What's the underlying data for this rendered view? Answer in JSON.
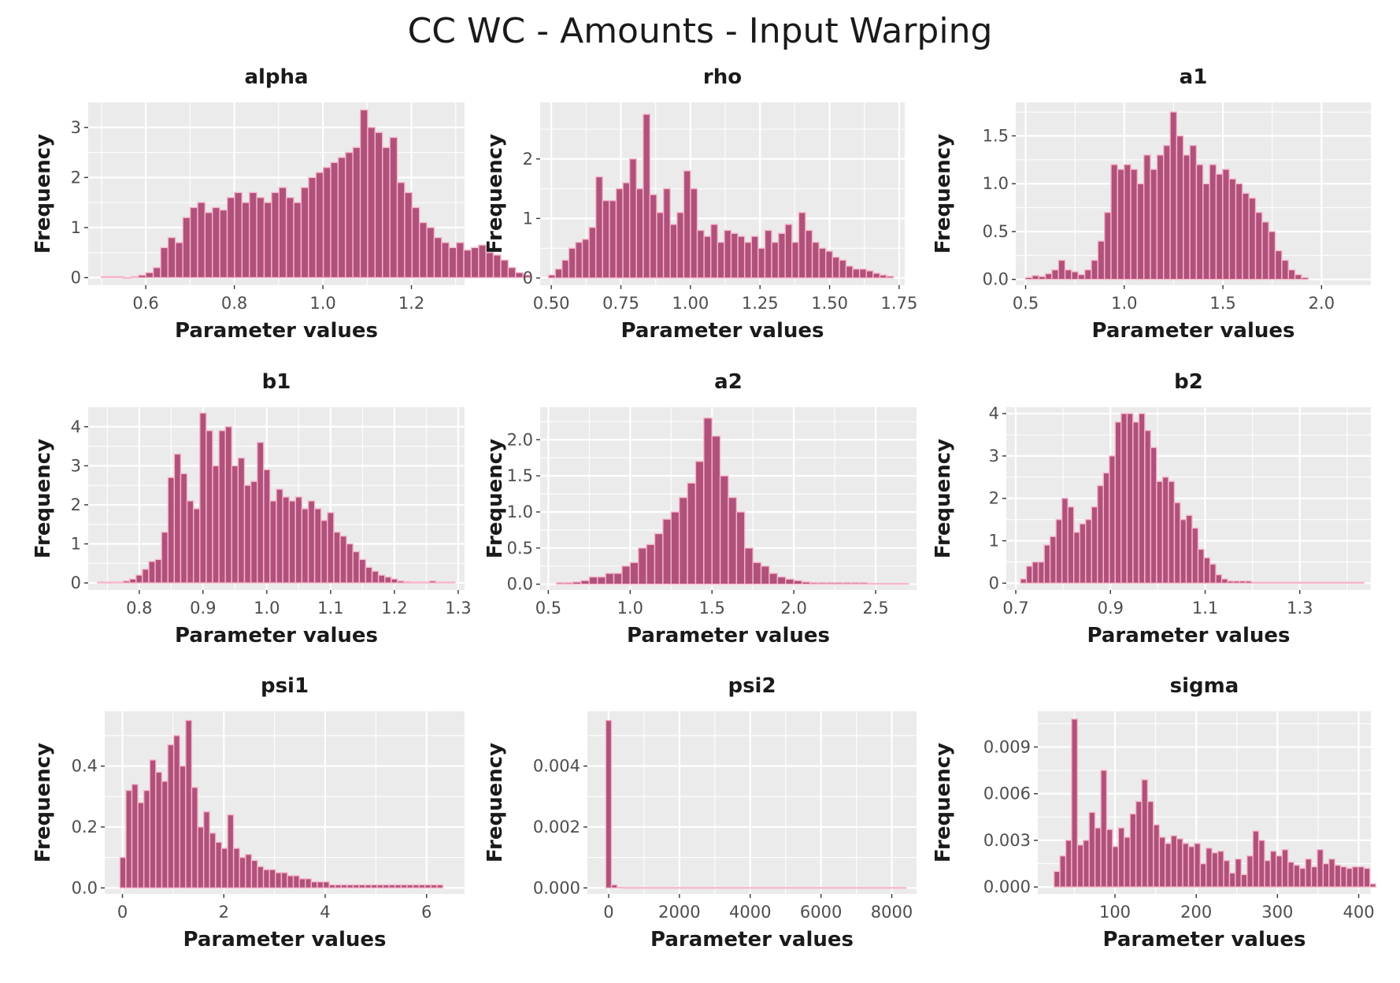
{
  "title": "CC WC - Amounts - Input Warping",
  "colors": {
    "panel_bg": "#ebebeb",
    "grid_major": "#ffffff",
    "bar_fill": "#b0517c",
    "bar_outline": "#f7b6c8",
    "text": "#1a1a1a",
    "tick_text": "#4d4d4d"
  },
  "chart_data": [
    {
      "type": "bar",
      "title": "alpha",
      "xlabel": "Parameter values",
      "ylabel": "Frequency",
      "xlim": [
        0.47,
        1.32
      ],
      "ylim": [
        -0.15,
        3.5
      ],
      "xticks": [
        0.6,
        0.8,
        1.0,
        1.2
      ],
      "xtick_labels": [
        "0.6",
        "0.8",
        "1.0",
        "1.2"
      ],
      "yticks": [
        0,
        1,
        2,
        3
      ],
      "ytick_labels": [
        "0",
        "1",
        "2",
        "3"
      ],
      "bin_start": 0.5,
      "bin_width": 0.0167,
      "values": [
        0.02,
        0.02,
        0.02,
        0.0,
        0.02,
        0.05,
        0.1,
        0.2,
        0.6,
        0.8,
        0.7,
        1.2,
        1.4,
        1.5,
        1.3,
        1.4,
        1.35,
        1.6,
        1.7,
        1.5,
        1.7,
        1.6,
        1.5,
        1.7,
        1.8,
        1.6,
        1.5,
        1.8,
        2.0,
        2.1,
        2.2,
        2.3,
        2.4,
        2.5,
        2.6,
        3.35,
        3.0,
        2.9,
        2.6,
        2.8,
        1.9,
        1.7,
        1.4,
        1.1,
        1.0,
        0.8,
        0.7,
        0.6,
        0.7,
        0.55,
        0.6,
        0.65,
        0.5,
        0.45,
        0.35,
        0.2,
        0.1,
        0.05
      ]
    },
    {
      "type": "bar",
      "title": "rho",
      "xlabel": "Parameter values",
      "ylabel": "Frequency",
      "xlim": [
        0.46,
        1.77
      ],
      "ylim": [
        -0.12,
        2.95
      ],
      "xticks": [
        0.5,
        0.75,
        1.0,
        1.25,
        1.5,
        1.75
      ],
      "xtick_labels": [
        "0.50",
        "0.75",
        "1.00",
        "1.25",
        "1.50",
        "1.75"
      ],
      "yticks": [
        0,
        1,
        2
      ],
      "ytick_labels": [
        "0",
        "1",
        "2"
      ],
      "bin_start": 0.49,
      "bin_width": 0.0243,
      "values": [
        0.05,
        0.15,
        0.3,
        0.5,
        0.6,
        0.65,
        0.85,
        1.7,
        1.3,
        1.3,
        1.5,
        1.6,
        2.0,
        1.5,
        2.75,
        1.4,
        1.1,
        1.5,
        0.9,
        1.1,
        1.8,
        1.5,
        0.8,
        0.7,
        0.9,
        0.6,
        0.8,
        0.75,
        0.7,
        0.6,
        0.7,
        0.5,
        0.8,
        0.6,
        0.75,
        0.9,
        0.6,
        1.1,
        0.8,
        0.6,
        0.5,
        0.45,
        0.35,
        0.3,
        0.2,
        0.15,
        0.15,
        0.12,
        0.08,
        0.05,
        0.03
      ]
    },
    {
      "type": "bar",
      "title": "a1",
      "xlabel": "Parameter values",
      "ylabel": "Frequency",
      "xlim": [
        0.45,
        2.25
      ],
      "ylim": [
        -0.06,
        1.85
      ],
      "xticks": [
        0.5,
        1.0,
        1.5,
        2.0
      ],
      "xtick_labels": [
        "0.5",
        "1.0",
        "1.5",
        "2.0"
      ],
      "yticks": [
        0.0,
        0.5,
        1.0,
        1.5
      ],
      "ytick_labels": [
        "0.0",
        "0.5",
        "1.0",
        "1.5"
      ],
      "bin_start": 0.5,
      "bin_width": 0.0333,
      "values": [
        0.02,
        0.04,
        0.03,
        0.06,
        0.1,
        0.2,
        0.1,
        0.08,
        0.05,
        0.1,
        0.2,
        0.4,
        0.7,
        1.2,
        1.15,
        1.2,
        1.15,
        1.0,
        1.3,
        1.15,
        1.3,
        1.4,
        1.75,
        1.5,
        1.3,
        1.4,
        1.2,
        1.0,
        1.2,
        1.1,
        1.15,
        1.05,
        1.0,
        0.9,
        0.85,
        0.7,
        0.6,
        0.5,
        0.3,
        0.2,
        0.1,
        0.05,
        0.02
      ]
    },
    {
      "type": "bar",
      "title": "b1",
      "xlabel": "Parameter values",
      "ylabel": "Frequency",
      "xlim": [
        0.72,
        1.31
      ],
      "ylim": [
        -0.18,
        4.5
      ],
      "xticks": [
        0.8,
        0.9,
        1.0,
        1.1,
        1.2,
        1.3
      ],
      "xtick_labels": [
        "0.8",
        "0.9",
        "1.0",
        "1.1",
        "1.2",
        "1.3"
      ],
      "yticks": [
        0,
        1,
        2,
        3,
        4
      ],
      "ytick_labels": [
        "0",
        "1",
        "2",
        "3",
        "4"
      ],
      "bin_start": 0.735,
      "bin_width": 0.01,
      "values": [
        0.02,
        0.02,
        0.02,
        0.02,
        0.05,
        0.1,
        0.2,
        0.35,
        0.55,
        0.6,
        1.3,
        2.7,
        3.3,
        2.8,
        2.1,
        1.9,
        4.35,
        3.9,
        3.0,
        3.9,
        4.0,
        3.0,
        3.2,
        2.5,
        2.6,
        3.6,
        2.9,
        2.1,
        2.4,
        2.2,
        2.1,
        2.2,
        1.9,
        2.1,
        1.9,
        1.6,
        1.8,
        1.3,
        1.2,
        1.0,
        0.8,
        0.6,
        0.4,
        0.3,
        0.2,
        0.15,
        0.1,
        0.05,
        0.03,
        0.02,
        0.02,
        0.02,
        0.05,
        0.02,
        0.02,
        0.02
      ]
    },
    {
      "type": "bar",
      "title": "a2",
      "xlabel": "Parameter values",
      "ylabel": "Frequency",
      "xlim": [
        0.45,
        2.75
      ],
      "ylim": [
        -0.08,
        2.45
      ],
      "xticks": [
        0.5,
        1.0,
        1.5,
        2.0,
        2.5
      ],
      "xtick_labels": [
        "0.5",
        "1.0",
        "1.5",
        "2.0",
        "2.5"
      ],
      "yticks": [
        0.0,
        0.5,
        1.0,
        1.5,
        2.0
      ],
      "ytick_labels": [
        "0.0",
        "0.5",
        "1.0",
        "1.5",
        "2.0"
      ],
      "bin_start": 0.55,
      "bin_width": 0.05,
      "values": [
        0.02,
        0.02,
        0.03,
        0.05,
        0.1,
        0.1,
        0.15,
        0.15,
        0.25,
        0.3,
        0.5,
        0.55,
        0.7,
        0.9,
        1.0,
        1.2,
        1.4,
        1.7,
        2.3,
        2.05,
        1.5,
        1.2,
        1.0,
        0.5,
        0.3,
        0.25,
        0.15,
        0.1,
        0.07,
        0.05,
        0.03,
        0.02,
        0.02,
        0.02,
        0.02,
        0.02,
        0.02,
        0.02,
        0.01,
        0.01,
        0.01,
        0.01,
        0.01
      ]
    },
    {
      "type": "bar",
      "title": "b2",
      "xlabel": "Parameter values",
      "ylabel": "Frequency",
      "xlim": [
        0.68,
        1.45
      ],
      "ylim": [
        -0.16,
        4.15
      ],
      "xticks": [
        0.7,
        0.9,
        1.1,
        1.3
      ],
      "xtick_labels": [
        "0.7",
        "0.9",
        "1.1",
        "1.3"
      ],
      "yticks": [
        0,
        1,
        2,
        3,
        4
      ],
      "ytick_labels": [
        "0",
        "1",
        "2",
        "3",
        "4"
      ],
      "bin_start": 0.71,
      "bin_width": 0.0125,
      "values": [
        0.1,
        0.4,
        0.5,
        0.5,
        0.9,
        1.1,
        1.5,
        2.0,
        1.8,
        1.2,
        1.4,
        1.5,
        1.8,
        2.3,
        2.6,
        3.0,
        3.8,
        4.0,
        4.0,
        3.8,
        4.0,
        3.6,
        3.2,
        2.4,
        2.5,
        2.4,
        1.9,
        1.5,
        1.6,
        1.3,
        0.8,
        0.6,
        0.45,
        0.2,
        0.1,
        0.05,
        0.05,
        0.05,
        0.05,
        0.02,
        0.02,
        0.02,
        0.02,
        0.02,
        0.02,
        0.02,
        0.02,
        0.02,
        0.02,
        0.02,
        0.02,
        0.02,
        0.02,
        0.02,
        0.02,
        0.02,
        0.02,
        0.02
      ]
    },
    {
      "type": "bar",
      "title": "psi1",
      "xlabel": "Parameter values",
      "ylabel": "Frequency",
      "xlim": [
        -0.35,
        6.75
      ],
      "ylim": [
        -0.02,
        0.58
      ],
      "xticks": [
        0,
        2,
        4,
        6
      ],
      "xtick_labels": [
        "0",
        "2",
        "4",
        "6"
      ],
      "yticks": [
        0.0,
        0.2,
        0.4
      ],
      "ytick_labels": [
        "0.0",
        "0.2",
        "0.4"
      ],
      "bin_start": -0.05,
      "bin_width": 0.118,
      "values": [
        0.1,
        0.32,
        0.34,
        0.28,
        0.32,
        0.42,
        0.38,
        0.35,
        0.47,
        0.5,
        0.4,
        0.55,
        0.33,
        0.2,
        0.25,
        0.18,
        0.15,
        0.13,
        0.24,
        0.13,
        0.1,
        0.11,
        0.09,
        0.07,
        0.06,
        0.06,
        0.05,
        0.05,
        0.04,
        0.04,
        0.03,
        0.03,
        0.02,
        0.02,
        0.02,
        0.01,
        0.01,
        0.01,
        0.01,
        0.01,
        0.01,
        0.01,
        0.01,
        0.01,
        0.01,
        0.01,
        0.01,
        0.01,
        0.01,
        0.01,
        0.01,
        0.01,
        0.01,
        0.01
      ]
    },
    {
      "type": "bar",
      "title": "psi2",
      "xlabel": "Parameter values",
      "ylabel": "Frequency",
      "xlim": [
        -600,
        8700
      ],
      "ylim": [
        -0.0002,
        0.0058
      ],
      "xticks": [
        0,
        2000,
        4000,
        6000,
        8000
      ],
      "xtick_labels": [
        "0",
        "2000",
        "4000",
        "6000",
        "8000"
      ],
      "yticks": [
        0.0,
        0.002,
        0.004
      ],
      "ytick_labels": [
        "0.000",
        "0.002",
        "0.004"
      ],
      "bin_start": -80,
      "bin_width": 160,
      "values": [
        0.0055,
        0.0001,
        2e-05,
        1e-05,
        1e-05,
        1e-05,
        1e-05,
        1e-05,
        1e-05,
        1e-05,
        1e-05,
        1e-05,
        1e-05,
        1e-05,
        1e-05,
        1e-05,
        1e-05,
        1e-05,
        1e-05,
        1e-05,
        1e-05,
        1e-05,
        1e-05,
        1e-05,
        1e-05,
        1e-05,
        1e-05,
        1e-05,
        1e-05,
        1e-05,
        1e-05,
        1e-05,
        1e-05,
        1e-05,
        1e-05,
        1e-05,
        1e-05,
        1e-05,
        1e-05,
        1e-05,
        1e-05,
        1e-05,
        1e-05,
        1e-05,
        1e-05,
        1e-05,
        1e-05,
        1e-05,
        1e-05,
        1e-05,
        1e-05,
        1e-05,
        1e-05
      ]
    },
    {
      "type": "bar",
      "title": "sigma",
      "xlabel": "Parameter values",
      "ylabel": "Frequency",
      "xlim": [
        5,
        415
      ],
      "ylim": [
        -0.00045,
        0.0113
      ],
      "xticks": [
        100,
        200,
        300,
        400
      ],
      "xtick_labels": [
        "100",
        "200",
        "300",
        "400"
      ],
      "yticks": [
        0.0,
        0.003,
        0.006,
        0.009
      ],
      "ytick_labels": [
        "0.000",
        "0.003",
        "0.006",
        "0.009"
      ],
      "bin_start": 25,
      "bin_width": 7.2,
      "values": [
        0.001,
        0.002,
        0.003,
        0.0108,
        0.0027,
        0.003,
        0.0048,
        0.0038,
        0.0075,
        0.0037,
        0.0026,
        0.0038,
        0.0032,
        0.0047,
        0.0055,
        0.0069,
        0.0055,
        0.004,
        0.0032,
        0.0028,
        0.0033,
        0.0031,
        0.0028,
        0.0026,
        0.0028,
        0.0015,
        0.0025,
        0.0022,
        0.0023,
        0.0017,
        0.0009,
        0.0018,
        0.0008,
        0.002,
        0.0036,
        0.003,
        0.0017,
        0.0023,
        0.002,
        0.0024,
        0.0016,
        0.0014,
        0.0012,
        0.0018,
        0.0013,
        0.0024,
        0.0015,
        0.0018,
        0.0014,
        0.0013,
        0.0012,
        0.0013,
        0.0013,
        0.0012,
        0.0002
      ]
    }
  ]
}
